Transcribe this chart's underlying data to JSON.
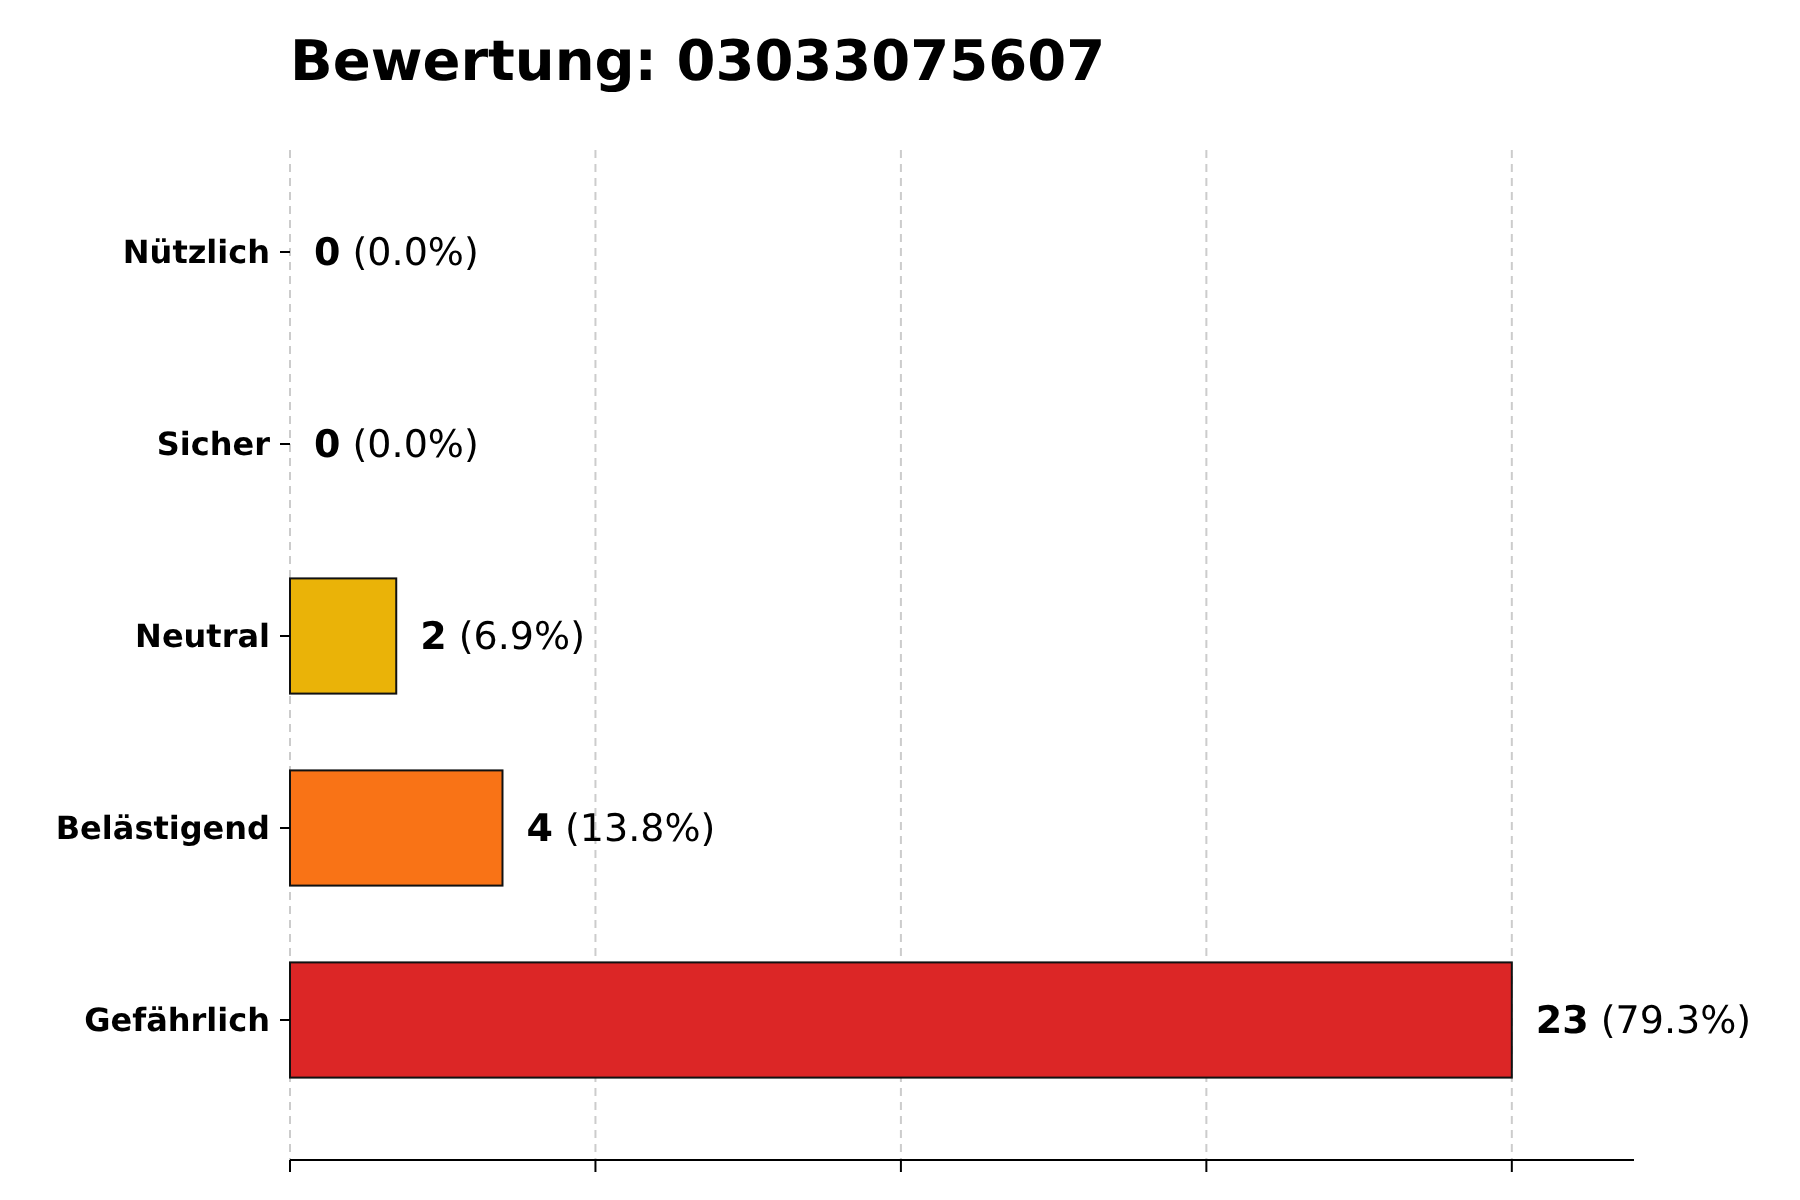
{
  "chart_data": {
    "type": "bar",
    "orientation": "horizontal",
    "title": "Bewertung: 03033075607",
    "categories": [
      "Nützlich",
      "Sicher",
      "Neutral",
      "Belästigend",
      "Gefährlich"
    ],
    "values": [
      0,
      0,
      2,
      4,
      23
    ],
    "colors": [
      "#22a045",
      "#3b82f6",
      "#eab308",
      "#f97316",
      "#dc2626"
    ],
    "value_labels": [
      "0 (0.0%)",
      "0 (0.0%)",
      "2 (6.9%)",
      "4 (13.8%)",
      "23 (79.3%)"
    ],
    "xlim": [
      0,
      25.3
    ],
    "xticks": [
      {
        "value": 0,
        "label": null
      },
      {
        "value": 5.75,
        "label": null
      },
      {
        "value": 11.5,
        "label": null
      },
      {
        "value": 17.25,
        "label": null
      },
      {
        "value": 23,
        "label": null
      }
    ],
    "grid": "x",
    "tick_labels": "y"
  }
}
